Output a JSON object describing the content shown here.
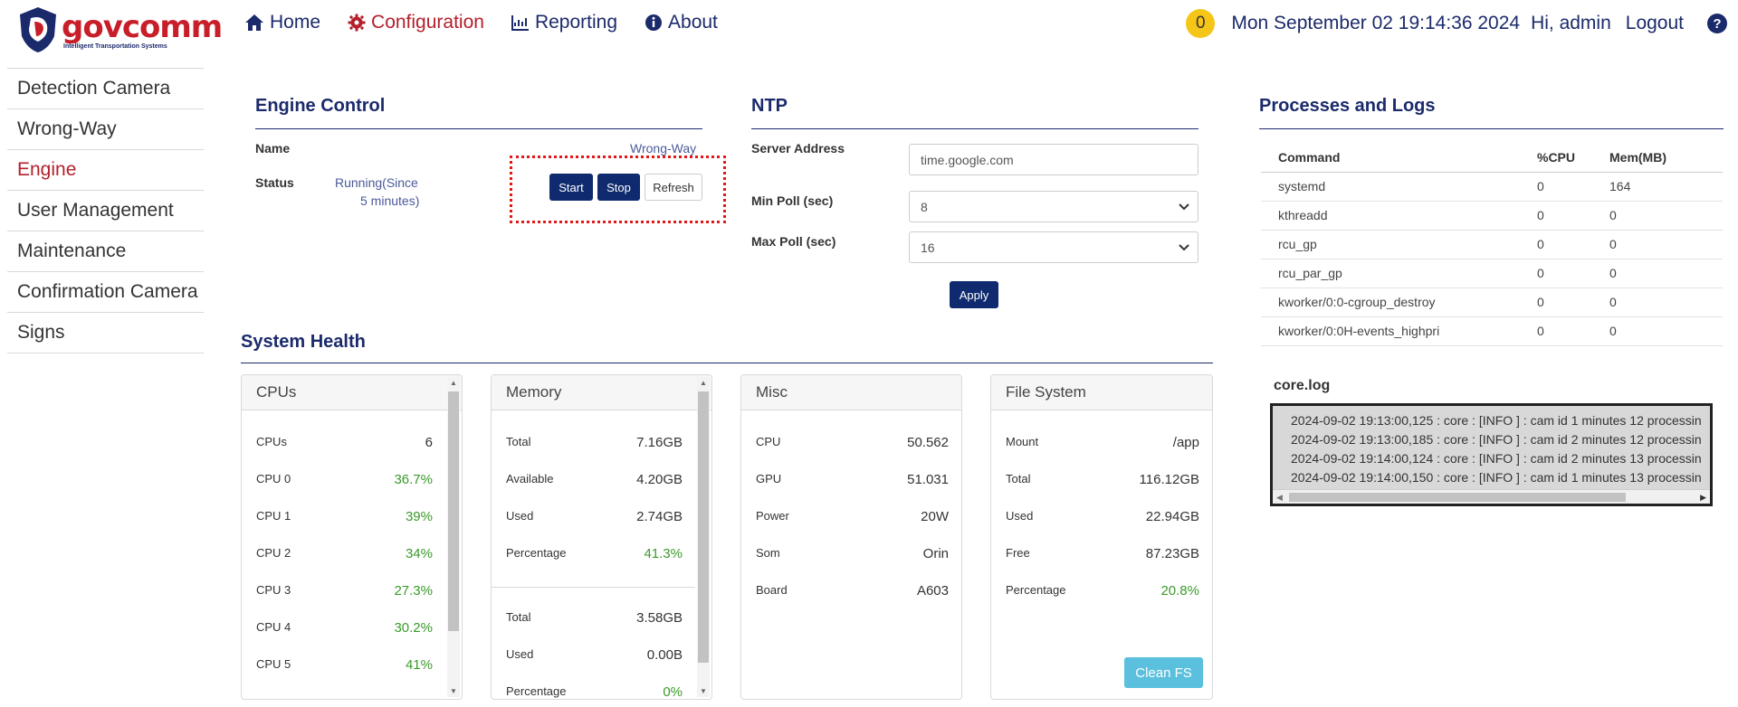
{
  "brand": {
    "name": "govcomm",
    "tagline": "Intelligent Transportation Systems"
  },
  "nav": [
    {
      "label": "Home",
      "icon": "home-icon"
    },
    {
      "label": "Configuration",
      "icon": "gear-icon",
      "active": true
    },
    {
      "label": "Reporting",
      "icon": "chart-icon"
    },
    {
      "label": "About",
      "icon": "info-icon"
    }
  ],
  "header": {
    "notification_count": "0",
    "datetime": "Mon September 02 19:14:36 2024",
    "greeting": "Hi, admin",
    "logout": "Logout",
    "help": "?"
  },
  "sidebar": [
    {
      "label": "Detection Camera"
    },
    {
      "label": "Wrong-Way"
    },
    {
      "label": "Engine",
      "active": true
    },
    {
      "label": "User Management"
    },
    {
      "label": "Maintenance"
    },
    {
      "label": "Confirmation Camera"
    },
    {
      "label": "Signs"
    }
  ],
  "engine": {
    "title": "Engine Control",
    "name_label": "Name",
    "name_value": "Wrong-Way",
    "status_label": "Status",
    "status_value_line1": "Running(Since",
    "status_value_line2": "5 minutes)",
    "start": "Start",
    "stop": "Stop",
    "refresh": "Refresh"
  },
  "ntp": {
    "title": "NTP",
    "server_label": "Server Address",
    "server_value": "time.google.com",
    "min_label": "Min Poll (sec)",
    "min_value": "8",
    "max_label": "Max Poll (sec)",
    "max_value": "16",
    "apply": "Apply"
  },
  "processes": {
    "title": "Processes and Logs",
    "headers": [
      "Command",
      "%CPU",
      "Mem(MB)"
    ],
    "rows": [
      [
        "systemd",
        "0",
        "164"
      ],
      [
        "kthreadd",
        "0",
        "0"
      ],
      [
        "rcu_gp",
        "0",
        "0"
      ],
      [
        "rcu_par_gp",
        "0",
        "0"
      ],
      [
        "kworker/0:0-cgroup_destroy",
        "0",
        "0"
      ],
      [
        "kworker/0:0H-events_highpri",
        "0",
        "0"
      ]
    ],
    "log_title": "core.log",
    "log_lines": [
      "2024-09-02 19:13:00,125 : core : [INFO ] : cam id 1 minutes 12 processin",
      "2024-09-02 19:13:00,185 : core : [INFO ] : cam id 2 minutes 12 processin",
      "2024-09-02 19:14:00,124 : core : [INFO ] : cam id 2 minutes 13 processin",
      "2024-09-02 19:14:00,150 : core : [INFO ] : cam id 1 minutes 13 processin"
    ]
  },
  "health": {
    "title": "System Health",
    "cpus": {
      "title": "CPUs",
      "rows": [
        {
          "label": "CPUs",
          "value": "6"
        },
        {
          "label": "CPU 0",
          "value": "36.7%"
        },
        {
          "label": "CPU 1",
          "value": "39%"
        },
        {
          "label": "CPU 2",
          "value": "34%"
        },
        {
          "label": "CPU 3",
          "value": "27.3%"
        },
        {
          "label": "CPU 4",
          "value": "30.2%"
        },
        {
          "label": "CPU 5",
          "value": "41%"
        }
      ]
    },
    "memory": {
      "title": "Memory",
      "ram": [
        {
          "label": "Total",
          "value": "7.16GB"
        },
        {
          "label": "Available",
          "value": "4.20GB"
        },
        {
          "label": "Used",
          "value": "2.74GB"
        },
        {
          "label": "Percentage",
          "value": "41.3%"
        }
      ],
      "swap": [
        {
          "label": "Total",
          "value": "3.58GB"
        },
        {
          "label": "Used",
          "value": "0.00B"
        },
        {
          "label": "Percentage",
          "value": "0%"
        }
      ]
    },
    "misc": {
      "title": "Misc",
      "rows": [
        {
          "label": "CPU",
          "value": "50.562"
        },
        {
          "label": "GPU",
          "value": "51.031"
        },
        {
          "label": "Power",
          "value": "20W"
        },
        {
          "label": "Som",
          "value": "Orin"
        },
        {
          "label": "Board",
          "value": "A603"
        }
      ]
    },
    "fs": {
      "title": "File System",
      "rows": [
        {
          "label": "Mount",
          "value": "/app"
        },
        {
          "label": "Total",
          "value": "116.12GB"
        },
        {
          "label": "Used",
          "value": "22.94GB"
        },
        {
          "label": "Free",
          "value": "87.23GB"
        },
        {
          "label": "Percentage",
          "value": "20.8%"
        }
      ],
      "clean": "Clean FS"
    }
  },
  "colors": {
    "navy": "#1b2a6b",
    "accent_red": "#b3202c",
    "green": "#3a9a2a",
    "info": "#5bc0de"
  }
}
